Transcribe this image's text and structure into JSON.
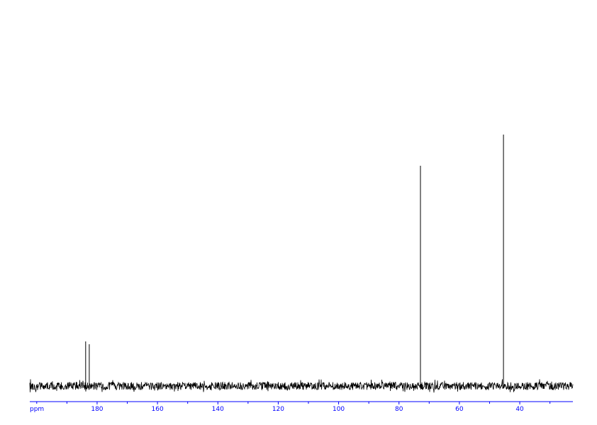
{
  "chart_data": {
    "type": "line",
    "title": "",
    "xlabel": "ppm",
    "ylabel": "",
    "xlim": [
      202.3,
      22.4
    ],
    "x_reversed": true,
    "x_ticks": [
      180,
      160,
      140,
      120,
      100,
      80,
      60,
      40
    ],
    "x_minor_tick_step": 10,
    "grid": false,
    "peaks": [
      {
        "ppm": 183.8,
        "intensity": 63
      },
      {
        "ppm": 182.6,
        "intensity": 59
      },
      {
        "ppm": 72.9,
        "intensity": 311
      },
      {
        "ppm": 45.4,
        "intensity": 355
      }
    ],
    "noise_amplitude": 7,
    "colors": {
      "spectrum": "#000000",
      "axis": "#0000ff"
    }
  }
}
